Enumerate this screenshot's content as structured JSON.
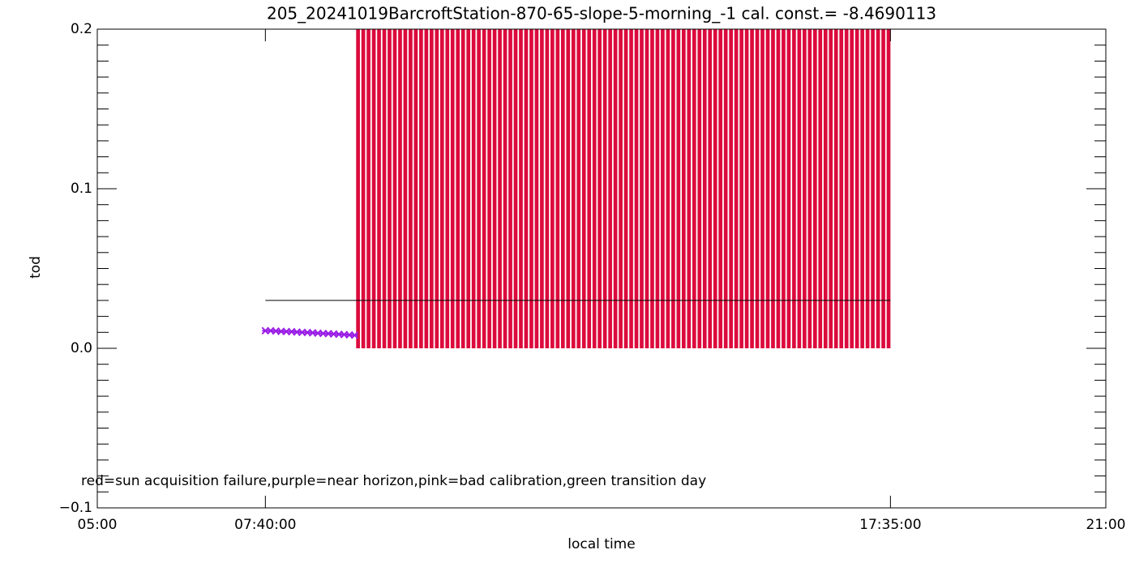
{
  "chart_data": {
    "type": "bar",
    "title": "205_20241019BarcroftStation-870-65-slope-5-morning_-1 cal. const.= -8.4690113",
    "xlabel": "local time",
    "ylabel": "tod",
    "annotation": "red=sun acquisition failure,purple=near horizon,pink=bad calibration,green transition day",
    "xlim": [
      5,
      21
    ],
    "xticks": [
      {
        "value": 5,
        "label": "05:00"
      },
      {
        "value": 7.6666667,
        "label": "07:40:00"
      },
      {
        "value": 17.5833333,
        "label": "17:35:00"
      },
      {
        "value": 21,
        "label": "21:00"
      }
    ],
    "ylim": [
      -0.1,
      0.2
    ],
    "yticks": [
      {
        "value": -0.1,
        "label": "−0.1"
      },
      {
        "value": 0,
        "label": "0.0"
      },
      {
        "value": 0.1,
        "label": "0.1"
      },
      {
        "value": 0.2,
        "label": "0.2"
      }
    ],
    "yminorticks": [
      -0.09,
      -0.08,
      -0.07,
      -0.06,
      -0.05,
      -0.04,
      -0.03,
      -0.02,
      -0.01,
      0.01,
      0.02,
      0.03,
      0.04,
      0.05,
      0.06,
      0.07,
      0.08,
      0.09,
      0.11,
      0.12,
      0.13,
      0.14,
      0.15,
      0.16,
      0.17,
      0.18,
      0.19
    ],
    "bars": {
      "color": "#dc0a3c",
      "x": [
        "09:10",
        "09:15",
        "09:20",
        "09:25",
        "09:30",
        "09:35",
        "09:40",
        "09:45",
        "09:50",
        "09:55",
        "10:00",
        "10:05",
        "10:10",
        "10:15",
        "10:20",
        "10:25",
        "10:30",
        "10:35",
        "10:40",
        "10:45",
        "10:50",
        "10:55",
        "11:00",
        "11:05",
        "11:10",
        "11:15",
        "11:20",
        "11:25",
        "11:30",
        "11:35",
        "11:40",
        "11:45",
        "11:50",
        "11:55",
        "12:00",
        "12:05",
        "12:10",
        "12:15",
        "12:20",
        "12:25",
        "12:30",
        "12:35",
        "12:40",
        "12:45",
        "12:50",
        "12:55",
        "13:00",
        "13:05",
        "13:10",
        "13:15",
        "13:20",
        "13:25",
        "13:30",
        "13:35",
        "13:40",
        "13:45",
        "13:50",
        "13:55",
        "14:00",
        "14:05",
        "14:10",
        "14:15",
        "14:20",
        "14:25",
        "14:30",
        "14:35",
        "14:40",
        "14:45",
        "14:50",
        "14:55",
        "15:00",
        "15:05",
        "15:10",
        "15:15",
        "15:20",
        "15:25",
        "15:30",
        "15:35",
        "15:40",
        "15:45",
        "15:50",
        "15:55",
        "16:00",
        "16:05",
        "16:10",
        "16:15",
        "16:20",
        "16:25",
        "16:30",
        "16:35",
        "16:40",
        "16:45",
        "16:50",
        "16:55",
        "17:00",
        "17:05",
        "17:10",
        "17:15",
        "17:20",
        "17:25",
        "17:30",
        "17:35"
      ],
      "values": [
        0.2,
        0.2,
        0.2,
        0.2,
        0.2,
        0.2,
        0.2,
        0.2,
        0.2,
        0.2,
        0.2,
        0.2,
        0.2,
        0.2,
        0.2,
        0.2,
        0.2,
        0.2,
        0.2,
        0.2,
        0.2,
        0.2,
        0.2,
        0.2,
        0.2,
        0.2,
        0.2,
        0.2,
        0.2,
        0.2,
        0.2,
        0.2,
        0.2,
        0.2,
        0.2,
        0.2,
        0.2,
        0.2,
        0.2,
        0.2,
        0.2,
        0.2,
        0.2,
        0.2,
        0.2,
        0.2,
        0.2,
        0.2,
        0.2,
        0.2,
        0.2,
        0.2,
        0.2,
        0.2,
        0.2,
        0.2,
        0.2,
        0.2,
        0.2,
        0.2,
        0.2,
        0.2,
        0.2,
        0.2,
        0.2,
        0.2,
        0.2,
        0.2,
        0.2,
        0.2,
        0.2,
        0.2,
        0.2,
        0.2,
        0.2,
        0.2,
        0.2,
        0.2,
        0.2,
        0.2,
        0.2,
        0.2,
        0.2,
        0.2,
        0.2,
        0.2,
        0.2,
        0.2,
        0.2,
        0.2,
        0.2,
        0.2,
        0.2,
        0.2,
        0.2,
        0.2,
        0.2,
        0.2,
        0.2,
        0.2,
        0.2,
        0.2
      ]
    },
    "points": {
      "color": "#9a1ee6",
      "x": [
        "07:40",
        "07:45",
        "07:50",
        "07:55",
        "08:00",
        "08:05",
        "08:10",
        "08:15",
        "08:20",
        "08:25",
        "08:30",
        "08:35",
        "08:40",
        "08:45",
        "08:50",
        "08:55",
        "09:00",
        "09:05"
      ],
      "values": [
        0.011,
        0.011,
        0.0108,
        0.0106,
        0.0105,
        0.0104,
        0.0102,
        0.01,
        0.0099,
        0.0097,
        0.0095,
        0.0093,
        0.0092,
        0.009,
        0.0088,
        0.0086,
        0.0084,
        0.0082
      ]
    },
    "line": {
      "color": "#000000",
      "x": [
        "07:40",
        "17:35"
      ],
      "values": [
        0.03,
        0.03
      ]
    }
  }
}
